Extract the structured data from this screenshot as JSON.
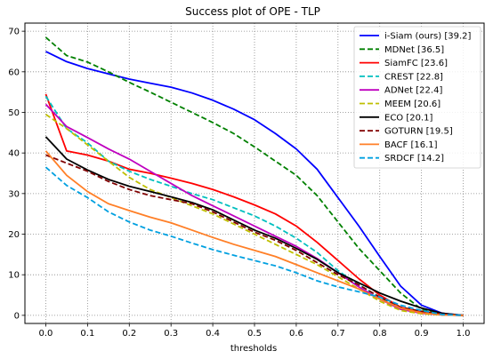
{
  "chart_data": {
    "type": "line",
    "title": "Success plot of OPE - TLP",
    "xlabel": "thresholds",
    "ylabel": "",
    "xlim": [
      -0.05,
      1.05
    ],
    "ylim": [
      -2,
      72
    ],
    "xticks": [
      "0.0",
      "0.1",
      "0.2",
      "0.3",
      "0.4",
      "0.5",
      "0.6",
      "0.7",
      "0.8",
      "0.9",
      "1.0"
    ],
    "yticks": [
      "0",
      "10",
      "20",
      "30",
      "40",
      "50",
      "60",
      "70"
    ],
    "grid": true,
    "legend_position": "top-right",
    "x": [
      0.0,
      0.05,
      0.1,
      0.15,
      0.2,
      0.25,
      0.3,
      0.35,
      0.4,
      0.45,
      0.5,
      0.55,
      0.6,
      0.65,
      0.7,
      0.75,
      0.8,
      0.85,
      0.9,
      0.95,
      1.0
    ],
    "series": [
      {
        "name": "i-Siam (ours) [39.2]",
        "color": "#0000ff",
        "dash": "solid",
        "values": [
          65,
          62.5,
          60.8,
          59.5,
          58.2,
          57.2,
          56.2,
          54.8,
          53.0,
          50.8,
          48.2,
          44.8,
          41.0,
          36.0,
          29.0,
          22.0,
          14.5,
          7.2,
          2.5,
          0.5,
          0
        ]
      },
      {
        "name": "MDNet [36.5]",
        "color": "#008000",
        "dash": "dashed",
        "values": [
          68.5,
          64.0,
          62.4,
          60.0,
          57.4,
          55.0,
          52.5,
          50.0,
          47.5,
          44.8,
          41.5,
          38.0,
          34.5,
          29.5,
          23.0,
          16.5,
          11.0,
          5.5,
          1.5,
          0.2,
          0
        ]
      },
      {
        "name": "SiamFC [23.6]",
        "color": "#ff0000",
        "dash": "solid",
        "values": [
          54.5,
          40.5,
          39.5,
          38.0,
          36.0,
          35.0,
          33.8,
          32.5,
          31.0,
          29.2,
          27.2,
          25.0,
          22.0,
          18.0,
          13.5,
          9.0,
          5.0,
          2.0,
          0.8,
          0.1,
          0
        ]
      },
      {
        "name": "CREST [22.8]",
        "color": "#00bfbf",
        "dash": "dashed",
        "values": [
          54.0,
          46.0,
          42.5,
          38.0,
          35.5,
          33.5,
          31.8,
          30.0,
          28.5,
          26.5,
          24.5,
          22.0,
          19.0,
          15.5,
          11.0,
          7.5,
          4.5,
          1.8,
          0.6,
          0.1,
          0
        ]
      },
      {
        "name": "ADNet [22.4]",
        "color": "#bf00bf",
        "dash": "solid",
        "values": [
          52.0,
          46.5,
          43.8,
          41.0,
          38.5,
          35.5,
          32.5,
          29.5,
          27.0,
          24.5,
          22.0,
          19.5,
          17.0,
          14.0,
          10.5,
          7.0,
          4.0,
          1.5,
          0.5,
          0.1,
          0
        ]
      },
      {
        "name": "MEEM [20.6]",
        "color": "#bfbf00",
        "dash": "dashed",
        "values": [
          49.5,
          46.0,
          42.0,
          38.0,
          34.0,
          31.0,
          29.0,
          27.0,
          25.0,
          22.5,
          20.0,
          17.5,
          15.0,
          12.5,
          9.5,
          6.5,
          3.5,
          1.2,
          0.4,
          0.1,
          0
        ]
      },
      {
        "name": "ECO [20.1]",
        "color": "#000000",
        "dash": "solid",
        "values": [
          44.0,
          38.5,
          35.8,
          33.5,
          31.8,
          30.5,
          29.2,
          27.8,
          26.0,
          23.5,
          21.0,
          19.0,
          16.5,
          13.8,
          10.5,
          8.0,
          5.5,
          3.5,
          1.8,
          0.5,
          0
        ]
      },
      {
        "name": "GOTURN [19.5]",
        "color": "#800000",
        "dash": "dashed",
        "values": [
          39.5,
          37.5,
          35.5,
          33.0,
          31.0,
          29.5,
          28.5,
          27.5,
          25.5,
          23.0,
          20.5,
          18.5,
          16.0,
          13.0,
          10.0,
          7.5,
          4.5,
          2.0,
          1.0,
          0.3,
          0
        ]
      },
      {
        "name": "BACF [16.1]",
        "color": "#ff7f27",
        "dash": "solid",
        "values": [
          40.5,
          34.5,
          30.5,
          27.5,
          25.8,
          24.2,
          22.8,
          21.0,
          19.2,
          17.5,
          16.0,
          14.5,
          12.5,
          10.5,
          8.5,
          6.5,
          4.0,
          1.8,
          0.6,
          0.1,
          0
        ]
      },
      {
        "name": "SRDCF [14.2]",
        "color": "#00a0e0",
        "dash": "dashed",
        "values": [
          36.5,
          32.0,
          29.0,
          25.5,
          23.0,
          21.0,
          19.5,
          17.8,
          16.2,
          14.8,
          13.5,
          12.2,
          10.5,
          8.5,
          7.0,
          5.8,
          4.5,
          2.5,
          1.2,
          0.2,
          0
        ]
      }
    ]
  }
}
